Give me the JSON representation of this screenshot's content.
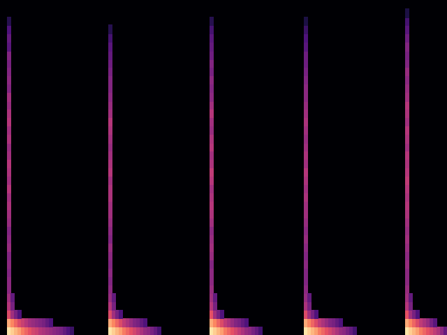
{
  "chart_data": {
    "type": "heatmap",
    "color": "magma",
    "grid": false,
    "tick_labels": false,
    "xlim": [
      0,
      128
    ],
    "ylim": [
      0,
      40
    ],
    "zlim": [
      -80,
      0
    ],
    "cells": [
      [
        2,
        0,
        -4
      ],
      [
        2,
        1,
        -14
      ],
      [
        2,
        2,
        -32
      ],
      [
        2,
        3,
        -40
      ],
      [
        2,
        4,
        -44
      ],
      [
        2,
        5,
        -48
      ],
      [
        2,
        6,
        -48
      ],
      [
        2,
        7,
        -50
      ],
      [
        2,
        8,
        -48
      ],
      [
        2,
        9,
        -50
      ],
      [
        2,
        10,
        -46
      ],
      [
        2,
        11,
        -48
      ],
      [
        2,
        12,
        -50
      ],
      [
        2,
        13,
        -46
      ],
      [
        2,
        14,
        -44
      ],
      [
        2,
        15,
        -42
      ],
      [
        2,
        16,
        -44
      ],
      [
        2,
        17,
        -40
      ],
      [
        2,
        18,
        -44
      ],
      [
        2,
        19,
        -42
      ],
      [
        2,
        20,
        -40
      ],
      [
        2,
        21,
        -44
      ],
      [
        2,
        22,
        -46
      ],
      [
        2,
        23,
        -42
      ],
      [
        2,
        24,
        -44
      ],
      [
        2,
        25,
        -40
      ],
      [
        2,
        26,
        -42
      ],
      [
        2,
        27,
        -46
      ],
      [
        2,
        28,
        -44
      ],
      [
        2,
        29,
        -50
      ],
      [
        2,
        30,
        -48
      ],
      [
        2,
        31,
        -50
      ],
      [
        2,
        32,
        -52
      ],
      [
        2,
        33,
        -50
      ],
      [
        2,
        34,
        -58
      ],
      [
        2,
        35,
        -56
      ],
      [
        2,
        36,
        -60
      ],
      [
        2,
        37,
        -68
      ],
      [
        3,
        0,
        -8
      ],
      [
        4,
        0,
        -12
      ],
      [
        5,
        0,
        -16
      ],
      [
        6,
        0,
        -22
      ],
      [
        7,
        0,
        -26
      ],
      [
        8,
        0,
        -30
      ],
      [
        9,
        0,
        -34
      ],
      [
        10,
        0,
        -36
      ],
      [
        11,
        0,
        -40
      ],
      [
        12,
        0,
        -42
      ],
      [
        13,
        0,
        -44
      ],
      [
        14,
        0,
        -46
      ],
      [
        15,
        0,
        -48
      ],
      [
        16,
        0,
        -50
      ],
      [
        17,
        0,
        -52
      ],
      [
        18,
        0,
        -56
      ],
      [
        19,
        0,
        -60
      ],
      [
        20,
        0,
        -64
      ],
      [
        3,
        1,
        -20
      ],
      [
        4,
        1,
        -26
      ],
      [
        5,
        1,
        -32
      ],
      [
        6,
        1,
        -36
      ],
      [
        7,
        1,
        -40
      ],
      [
        8,
        1,
        -44
      ],
      [
        9,
        1,
        -46
      ],
      [
        10,
        1,
        -48
      ],
      [
        11,
        1,
        -50
      ],
      [
        12,
        1,
        -52
      ],
      [
        13,
        1,
        -56
      ],
      [
        14,
        1,
        -60
      ],
      [
        3,
        2,
        -44
      ],
      [
        4,
        2,
        -52
      ],
      [
        5,
        2,
        -60
      ],
      [
        3,
        3,
        -52
      ],
      [
        3,
        4,
        -56
      ],
      [
        31,
        0,
        -4
      ],
      [
        31,
        1,
        -14
      ],
      [
        31,
        2,
        -32
      ],
      [
        31,
        3,
        -40
      ],
      [
        31,
        4,
        -46
      ],
      [
        31,
        5,
        -48
      ],
      [
        31,
        6,
        -50
      ],
      [
        31,
        7,
        -48
      ],
      [
        31,
        8,
        -50
      ],
      [
        31,
        9,
        -48
      ],
      [
        31,
        10,
        -46
      ],
      [
        31,
        11,
        -50
      ],
      [
        31,
        12,
        -48
      ],
      [
        31,
        13,
        -46
      ],
      [
        31,
        14,
        -44
      ],
      [
        31,
        15,
        -44
      ],
      [
        31,
        16,
        -42
      ],
      [
        31,
        17,
        -42
      ],
      [
        31,
        18,
        -44
      ],
      [
        31,
        19,
        -40
      ],
      [
        31,
        20,
        -42
      ],
      [
        31,
        21,
        -44
      ],
      [
        31,
        22,
        -46
      ],
      [
        31,
        23,
        -44
      ],
      [
        31,
        24,
        -42
      ],
      [
        31,
        25,
        -40
      ],
      [
        31,
        26,
        -44
      ],
      [
        31,
        27,
        -46
      ],
      [
        31,
        28,
        -48
      ],
      [
        31,
        29,
        -50
      ],
      [
        31,
        30,
        -50
      ],
      [
        31,
        31,
        -52
      ],
      [
        31,
        32,
        -54
      ],
      [
        31,
        33,
        -56
      ],
      [
        31,
        34,
        -58
      ],
      [
        31,
        35,
        -62
      ],
      [
        31,
        36,
        -68
      ],
      [
        32,
        0,
        -8
      ],
      [
        33,
        0,
        -12
      ],
      [
        34,
        0,
        -16
      ],
      [
        35,
        0,
        -22
      ],
      [
        36,
        0,
        -26
      ],
      [
        37,
        0,
        -30
      ],
      [
        38,
        0,
        -34
      ],
      [
        39,
        0,
        -38
      ],
      [
        40,
        0,
        -42
      ],
      [
        41,
        0,
        -46
      ],
      [
        42,
        0,
        -48
      ],
      [
        43,
        0,
        -52
      ],
      [
        44,
        0,
        -56
      ],
      [
        45,
        0,
        -62
      ],
      [
        32,
        1,
        -20
      ],
      [
        33,
        1,
        -26
      ],
      [
        34,
        1,
        -32
      ],
      [
        35,
        1,
        -38
      ],
      [
        36,
        1,
        -42
      ],
      [
        37,
        1,
        -46
      ],
      [
        38,
        1,
        -50
      ],
      [
        39,
        1,
        -52
      ],
      [
        40,
        1,
        -56
      ],
      [
        41,
        1,
        -60
      ],
      [
        32,
        2,
        -44
      ],
      [
        33,
        2,
        -52
      ],
      [
        34,
        2,
        -60
      ],
      [
        32,
        3,
        -52
      ],
      [
        32,
        4,
        -56
      ],
      [
        60,
        0,
        -4
      ],
      [
        60,
        1,
        -14
      ],
      [
        60,
        2,
        -30
      ],
      [
        60,
        3,
        -40
      ],
      [
        60,
        4,
        -44
      ],
      [
        60,
        5,
        -46
      ],
      [
        60,
        6,
        -48
      ],
      [
        60,
        7,
        -48
      ],
      [
        60,
        8,
        -50
      ],
      [
        60,
        9,
        -46
      ],
      [
        60,
        10,
        -44
      ],
      [
        60,
        11,
        -46
      ],
      [
        60,
        12,
        -48
      ],
      [
        60,
        13,
        -44
      ],
      [
        60,
        14,
        -42
      ],
      [
        60,
        15,
        -40
      ],
      [
        60,
        16,
        -42
      ],
      [
        60,
        17,
        -44
      ],
      [
        60,
        18,
        -40
      ],
      [
        60,
        19,
        -38
      ],
      [
        60,
        20,
        -42
      ],
      [
        60,
        21,
        -44
      ],
      [
        60,
        22,
        -40
      ],
      [
        60,
        23,
        -42
      ],
      [
        60,
        24,
        -46
      ],
      [
        60,
        25,
        -44
      ],
      [
        60,
        26,
        -40
      ],
      [
        60,
        27,
        -44
      ],
      [
        60,
        28,
        -48
      ],
      [
        60,
        29,
        -50
      ],
      [
        60,
        30,
        -48
      ],
      [
        60,
        31,
        -52
      ],
      [
        60,
        32,
        -50
      ],
      [
        60,
        33,
        -54
      ],
      [
        60,
        34,
        -56
      ],
      [
        60,
        35,
        -58
      ],
      [
        60,
        36,
        -62
      ],
      [
        60,
        37,
        -68
      ],
      [
        61,
        0,
        -8
      ],
      [
        62,
        0,
        -12
      ],
      [
        63,
        0,
        -16
      ],
      [
        64,
        0,
        -22
      ],
      [
        65,
        0,
        -26
      ],
      [
        66,
        0,
        -30
      ],
      [
        67,
        0,
        -34
      ],
      [
        68,
        0,
        -38
      ],
      [
        69,
        0,
        -42
      ],
      [
        70,
        0,
        -46
      ],
      [
        71,
        0,
        -48
      ],
      [
        72,
        0,
        -52
      ],
      [
        73,
        0,
        -56
      ],
      [
        74,
        0,
        -62
      ],
      [
        61,
        1,
        -20
      ],
      [
        62,
        1,
        -26
      ],
      [
        63,
        1,
        -32
      ],
      [
        64,
        1,
        -38
      ],
      [
        65,
        1,
        -42
      ],
      [
        66,
        1,
        -46
      ],
      [
        67,
        1,
        -50
      ],
      [
        68,
        1,
        -52
      ],
      [
        69,
        1,
        -56
      ],
      [
        70,
        1,
        -60
      ],
      [
        61,
        2,
        -44
      ],
      [
        62,
        2,
        -52
      ],
      [
        63,
        2,
        -60
      ],
      [
        61,
        3,
        -52
      ],
      [
        61,
        4,
        -56
      ],
      [
        87,
        0,
        -4
      ],
      [
        87,
        1,
        -14
      ],
      [
        87,
        2,
        -32
      ],
      [
        87,
        3,
        -42
      ],
      [
        87,
        4,
        -46
      ],
      [
        87,
        5,
        -48
      ],
      [
        87,
        6,
        -50
      ],
      [
        87,
        7,
        -50
      ],
      [
        87,
        8,
        -48
      ],
      [
        87,
        9,
        -50
      ],
      [
        87,
        10,
        -48
      ],
      [
        87,
        11,
        -46
      ],
      [
        87,
        12,
        -48
      ],
      [
        87,
        13,
        -46
      ],
      [
        87,
        14,
        -44
      ],
      [
        87,
        15,
        -44
      ],
      [
        87,
        16,
        -42
      ],
      [
        87,
        17,
        -44
      ],
      [
        87,
        18,
        -42
      ],
      [
        87,
        19,
        -40
      ],
      [
        87,
        20,
        -44
      ],
      [
        87,
        21,
        -42
      ],
      [
        87,
        22,
        -44
      ],
      [
        87,
        23,
        -46
      ],
      [
        87,
        24,
        -44
      ],
      [
        87,
        25,
        -42
      ],
      [
        87,
        26,
        -44
      ],
      [
        87,
        27,
        -46
      ],
      [
        87,
        28,
        -48
      ],
      [
        87,
        29,
        -48
      ],
      [
        87,
        30,
        -50
      ],
      [
        87,
        31,
        -52
      ],
      [
        87,
        32,
        -54
      ],
      [
        87,
        33,
        -54
      ],
      [
        87,
        34,
        -58
      ],
      [
        87,
        35,
        -60
      ],
      [
        87,
        36,
        -64
      ],
      [
        87,
        37,
        -70
      ],
      [
        88,
        0,
        -8
      ],
      [
        89,
        0,
        -12
      ],
      [
        90,
        0,
        -16
      ],
      [
        91,
        0,
        -22
      ],
      [
        92,
        0,
        -26
      ],
      [
        93,
        0,
        -30
      ],
      [
        94,
        0,
        -34
      ],
      [
        95,
        0,
        -38
      ],
      [
        96,
        0,
        -42
      ],
      [
        97,
        0,
        -46
      ],
      [
        98,
        0,
        -48
      ],
      [
        99,
        0,
        -52
      ],
      [
        100,
        0,
        -56
      ],
      [
        101,
        0,
        -62
      ],
      [
        88,
        1,
        -20
      ],
      [
        89,
        1,
        -26
      ],
      [
        90,
        1,
        -32
      ],
      [
        91,
        1,
        -38
      ],
      [
        92,
        1,
        -42
      ],
      [
        93,
        1,
        -46
      ],
      [
        94,
        1,
        -50
      ],
      [
        95,
        1,
        -52
      ],
      [
        96,
        1,
        -56
      ],
      [
        97,
        1,
        -60
      ],
      [
        88,
        2,
        -44
      ],
      [
        89,
        2,
        -52
      ],
      [
        90,
        2,
        -60
      ],
      [
        88,
        3,
        -52
      ],
      [
        88,
        4,
        -56
      ],
      [
        116,
        0,
        -4
      ],
      [
        116,
        1,
        -14
      ],
      [
        116,
        2,
        -30
      ],
      [
        116,
        3,
        -40
      ],
      [
        116,
        4,
        -44
      ],
      [
        116,
        5,
        -46
      ],
      [
        116,
        6,
        -48
      ],
      [
        116,
        7,
        -48
      ],
      [
        116,
        8,
        -46
      ],
      [
        116,
        9,
        -48
      ],
      [
        116,
        10,
        -46
      ],
      [
        116,
        11,
        -44
      ],
      [
        116,
        12,
        -46
      ],
      [
        116,
        13,
        -44
      ],
      [
        116,
        14,
        -42
      ],
      [
        116,
        15,
        -40
      ],
      [
        116,
        16,
        -42
      ],
      [
        116,
        17,
        -40
      ],
      [
        116,
        18,
        -38
      ],
      [
        116,
        19,
        -40
      ],
      [
        116,
        20,
        -42
      ],
      [
        116,
        21,
        -40
      ],
      [
        116,
        22,
        -44
      ],
      [
        116,
        23,
        -42
      ],
      [
        116,
        24,
        -40
      ],
      [
        116,
        25,
        -44
      ],
      [
        116,
        26,
        -42
      ],
      [
        116,
        27,
        -40
      ],
      [
        116,
        28,
        -44
      ],
      [
        116,
        29,
        -46
      ],
      [
        116,
        30,
        -48
      ],
      [
        116,
        31,
        -46
      ],
      [
        116,
        32,
        -50
      ],
      [
        116,
        33,
        -52
      ],
      [
        116,
        34,
        -50
      ],
      [
        116,
        35,
        -54
      ],
      [
        116,
        36,
        -58
      ],
      [
        116,
        37,
        -62
      ],
      [
        116,
        38,
        -70
      ],
      [
        117,
        0,
        -8
      ],
      [
        118,
        0,
        -12
      ],
      [
        119,
        0,
        -16
      ],
      [
        120,
        0,
        -22
      ],
      [
        121,
        0,
        -26
      ],
      [
        122,
        0,
        -30
      ],
      [
        123,
        0,
        -34
      ],
      [
        124,
        0,
        -38
      ],
      [
        125,
        0,
        -42
      ],
      [
        126,
        0,
        -48
      ],
      [
        127,
        0,
        -56
      ],
      [
        117,
        1,
        -20
      ],
      [
        118,
        1,
        -26
      ],
      [
        119,
        1,
        -32
      ],
      [
        120,
        1,
        -38
      ],
      [
        121,
        1,
        -42
      ],
      [
        122,
        1,
        -46
      ],
      [
        123,
        1,
        -52
      ],
      [
        124,
        1,
        -58
      ],
      [
        117,
        2,
        -44
      ],
      [
        118,
        2,
        -52
      ],
      [
        119,
        2,
        -60
      ],
      [
        117,
        3,
        -52
      ],
      [
        117,
        4,
        -56
      ]
    ]
  }
}
